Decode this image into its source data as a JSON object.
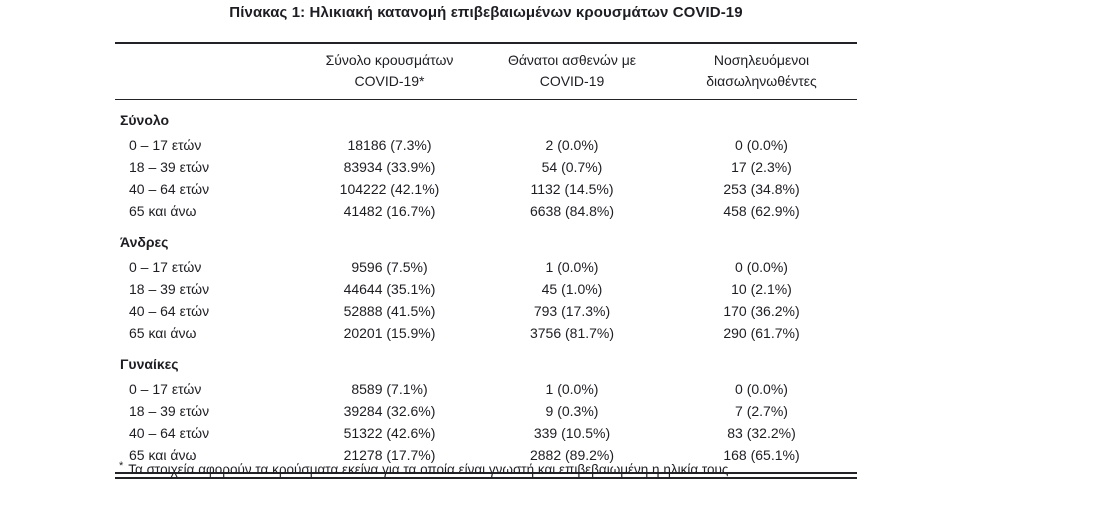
{
  "title": "Πίνακας 1: Ηλικιακή κατανομή επιβεβαιωμένων κρουσμάτων COVID-19",
  "table": {
    "columns": {
      "cases": {
        "line1": "Σύνολο κρουσμάτων",
        "line2": "COVID-19*"
      },
      "deaths": {
        "line1": "Θάνατοι ασθενών με",
        "line2": "COVID-19"
      },
      "intubated": {
        "line1": "Νοσηλευόμενοι",
        "line2": "διασωληνωθέντες"
      }
    },
    "sections": [
      {
        "label": "Σύνολο",
        "rows": [
          {
            "age": "0 – 17 ετών",
            "cases": "18186 (7.3%)",
            "deaths": "2 (0.0%)",
            "intubated": "0 (0.0%)"
          },
          {
            "age": "18 – 39 ετών",
            "cases": "83934 (33.9%)",
            "deaths": "54 (0.7%)",
            "intubated": "17 (2.3%)"
          },
          {
            "age": "40 – 64 ετών",
            "cases": "104222 (42.1%)",
            "deaths": "1132 (14.5%)",
            "intubated": "253 (34.8%)"
          },
          {
            "age": "65 και άνω",
            "cases": "41482 (16.7%)",
            "deaths": "6638 (84.8%)",
            "intubated": "458 (62.9%)"
          }
        ]
      },
      {
        "label": "Άνδρες",
        "rows": [
          {
            "age": "0 – 17 ετών",
            "cases": "9596 (7.5%)",
            "deaths": "1 (0.0%)",
            "intubated": "0 (0.0%)"
          },
          {
            "age": "18 – 39 ετών",
            "cases": "44644 (35.1%)",
            "deaths": "45 (1.0%)",
            "intubated": "10 (2.1%)"
          },
          {
            "age": "40 – 64 ετών",
            "cases": "52888 (41.5%)",
            "deaths": "793 (17.3%)",
            "intubated": "170 (36.2%)"
          },
          {
            "age": "65 και άνω",
            "cases": "20201 (15.9%)",
            "deaths": "3756 (81.7%)",
            "intubated": "290 (61.7%)"
          }
        ]
      },
      {
        "label": "Γυναίκες",
        "rows": [
          {
            "age": "0 – 17 ετών",
            "cases": "8589 (7.1%)",
            "deaths": "1 (0.0%)",
            "intubated": "0 (0.0%)"
          },
          {
            "age": "18 – 39 ετών",
            "cases": "39284 (32.6%)",
            "deaths": "9 (0.3%)",
            "intubated": "7 (2.7%)"
          },
          {
            "age": "40 – 64 ετών",
            "cases": "51322 (42.6%)",
            "deaths": "339 (10.5%)",
            "intubated": "83 (32.2%)"
          },
          {
            "age": "65 και άνω",
            "cases": "21278 (17.7%)",
            "deaths": "2882 (89.2%)",
            "intubated": "168 (65.1%)"
          }
        ]
      }
    ]
  },
  "footnote": {
    "marker": "*",
    "text": "Τα στοιχεία αφορούν τα κρούσματα εκείνα για τα οποία είναι γνωστή και επιβεβαιωμένη η ηλικία τους"
  },
  "colors": {
    "text": "#1e1d23",
    "rule": "#232227",
    "background": "#ffffff"
  }
}
